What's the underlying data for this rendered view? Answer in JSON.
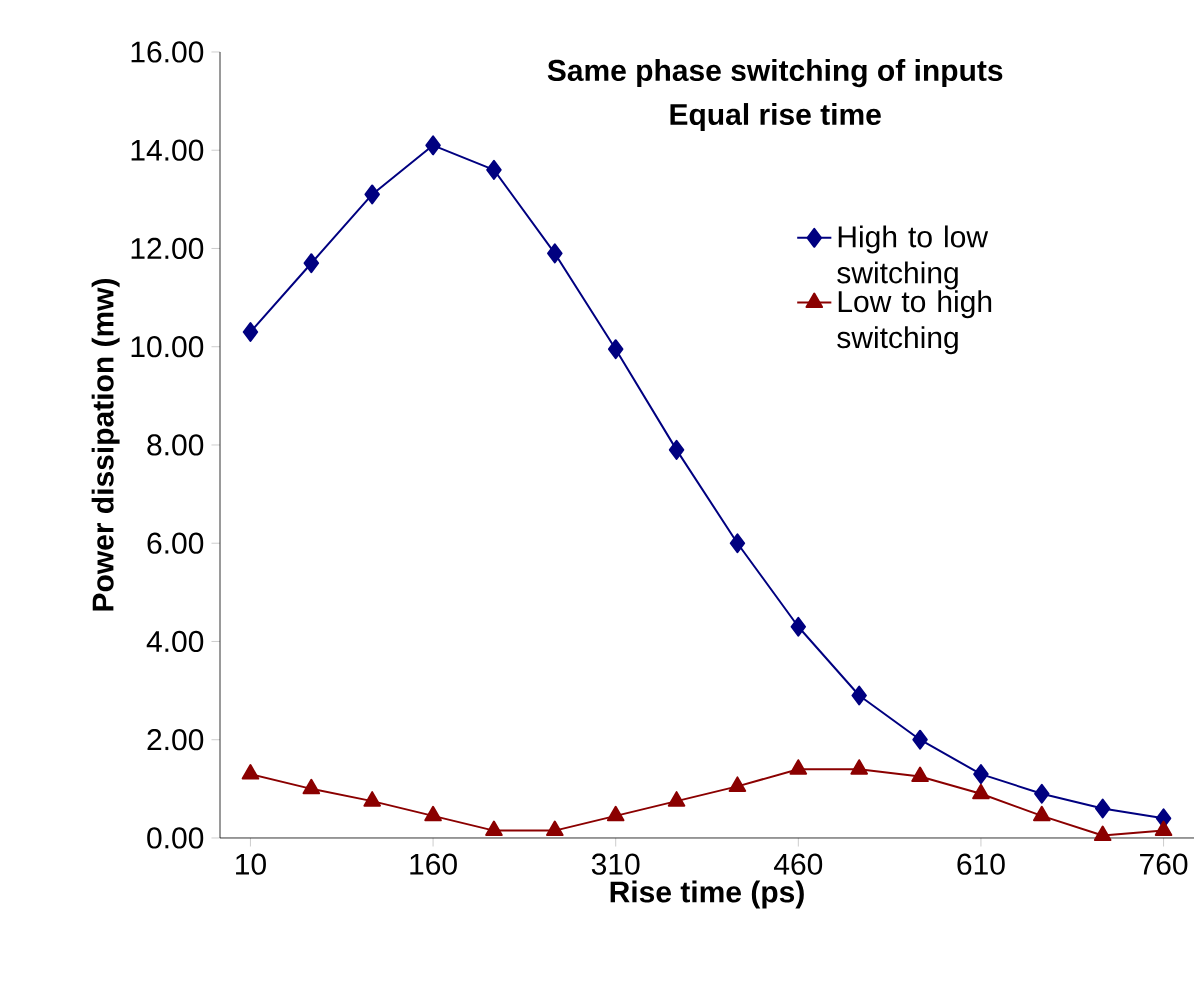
{
  "chart_data": {
    "type": "line",
    "title": "Same phase switching of inputs",
    "subtitle": "Equal rise time",
    "xlabel": "Rise time (ps)",
    "ylabel": "Power dissipation (mw)",
    "x": [
      10,
      60,
      110,
      160,
      210,
      260,
      310,
      360,
      410,
      460,
      510,
      560,
      610,
      660,
      710,
      760
    ],
    "series": [
      {
        "name": "High to low switching",
        "color": "#000080",
        "marker": "diamond",
        "values": [
          10.3,
          11.7,
          13.1,
          14.1,
          13.6,
          11.9,
          9.95,
          7.9,
          6.0,
          4.3,
          2.9,
          2.0,
          1.3,
          0.9,
          0.6,
          0.4
        ]
      },
      {
        "name": "Low to high switching",
        "color": "#8b0000",
        "marker": "triangle",
        "values": [
          1.3,
          1.0,
          0.75,
          0.45,
          0.15,
          0.15,
          0.45,
          0.75,
          1.05,
          1.4,
          1.4,
          1.25,
          0.9,
          0.45,
          0.05,
          0.15
        ]
      }
    ],
    "xlim": [
      -15,
      785
    ],
    "xticks": [
      10,
      160,
      310,
      460,
      610,
      760
    ],
    "ylim": [
      0,
      16
    ],
    "yticks": [
      {
        "value": 0,
        "label": "0.00"
      },
      {
        "value": 2,
        "label": "2.00"
      },
      {
        "value": 4,
        "label": "4.00"
      },
      {
        "value": 6,
        "label": "6.00"
      },
      {
        "value": 8,
        "label": "8.00"
      },
      {
        "value": 10,
        "label": "10.00"
      },
      {
        "value": 12,
        "label": "12.00"
      },
      {
        "value": 14,
        "label": "14.00"
      },
      {
        "value": 16,
        "label": "16.00"
      }
    ],
    "grid": false,
    "legend": "top right",
    "line_style": "solid"
  }
}
